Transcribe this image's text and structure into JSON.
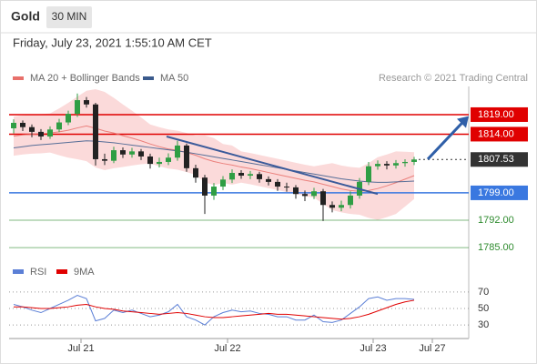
{
  "chart_data": {
    "type": "candlestick",
    "symbol": "Gold",
    "timeframe": "30 MIN",
    "timestamp": "Friday, July 23, 2021 1:55:10 AM CET",
    "credit": "Research © 2021 Trading Central",
    "xlim": [
      -0.5,
      50
    ],
    "ylim": [
      1782,
      1826.2
    ],
    "xticks": [
      {
        "value": 7.4,
        "label": "Jul 21"
      },
      {
        "value": 23.5,
        "label": "Jul 22"
      },
      {
        "value": 39.5,
        "label": "Jul 23"
      },
      {
        "value": 46,
        "label": "Jul 27"
      }
    ],
    "candles": {
      "up_color": "#2f9e44",
      "down_color": "#222222",
      "open": [
        1815.5,
        1816.9,
        1815.8,
        1814.6,
        1813.4,
        1815.2,
        1817.0,
        1819.2,
        1822.7,
        1821.6,
        1807.6,
        1807.2,
        1809.9,
        1808.8,
        1809.6,
        1808.3,
        1806.4,
        1806.9,
        1808.0,
        1811.1,
        1805.3,
        1802.9,
        1798.3,
        1800.6,
        1802.4,
        1804.1,
        1803.4,
        1803.8,
        1802.5,
        1801.8,
        1800.6,
        1800.4,
        1798.7,
        1798.2,
        1799.4,
        1795.9,
        1795.2,
        1795.9,
        1798.3,
        1801.8,
        1805.8,
        1806.4,
        1806.0,
        1806.6,
        1806.9
      ],
      "high": [
        1817.8,
        1817.5,
        1816.5,
        1815.3,
        1816.0,
        1817.9,
        1820.0,
        1824.4,
        1823.5,
        1822.0,
        1809.0,
        1810.8,
        1810.6,
        1810.5,
        1810.2,
        1809.0,
        1808.0,
        1809.1,
        1812.3,
        1811.6,
        1806.2,
        1803.6,
        1801.5,
        1803.3,
        1805.0,
        1804.8,
        1804.6,
        1804.4,
        1803.2,
        1802.5,
        1801.6,
        1801.0,
        1799.6,
        1800.3,
        1800.0,
        1796.8,
        1797.0,
        1799.4,
        1802.8,
        1806.9,
        1807.3,
        1807.1,
        1807.4,
        1807.6,
        1808.2
      ],
      "low": [
        1814.2,
        1814.8,
        1813.2,
        1812.5,
        1812.8,
        1814.5,
        1816.3,
        1818.4,
        1820.8,
        1806.0,
        1806.1,
        1806.6,
        1807.9,
        1808.0,
        1807.4,
        1805.2,
        1805.5,
        1806.1,
        1807.2,
        1804.4,
        1801.6,
        1793.6,
        1797.2,
        1799.7,
        1801.5,
        1802.6,
        1802.5,
        1801.6,
        1800.9,
        1799.5,
        1799.3,
        1797.5,
        1796.9,
        1797.4,
        1791.8,
        1794.0,
        1794.3,
        1795.0,
        1797.5,
        1801.0,
        1804.9,
        1805.0,
        1805.2,
        1805.7,
        1806.1
      ],
      "close": [
        1816.9,
        1815.8,
        1814.6,
        1813.4,
        1815.2,
        1817.0,
        1819.2,
        1822.7,
        1821.6,
        1807.6,
        1807.2,
        1809.9,
        1808.8,
        1809.6,
        1808.3,
        1806.4,
        1806.9,
        1808.0,
        1811.1,
        1805.3,
        1802.9,
        1798.3,
        1800.6,
        1802.4,
        1804.1,
        1803.4,
        1803.8,
        1802.5,
        1801.8,
        1800.6,
        1800.4,
        1798.7,
        1798.2,
        1799.4,
        1795.9,
        1795.2,
        1795.9,
        1798.3,
        1801.8,
        1805.8,
        1806.4,
        1806.0,
        1806.6,
        1806.9,
        1807.53
      ]
    },
    "series": [
      {
        "name": "MA 20 + Bollinger Bands",
        "color": "#e8706b",
        "band_color": "#fbdada",
        "values": [
          1813.5,
          1813.8,
          1814.0,
          1814.1,
          1814.3,
          1814.6,
          1815.0,
          1815.6,
          1816.1,
          1815.5,
          1814.8,
          1814.3,
          1813.6,
          1813.0,
          1812.3,
          1811.5,
          1810.8,
          1810.2,
          1809.9,
          1809.3,
          1808.6,
          1807.7,
          1807.0,
          1806.5,
          1806.1,
          1805.6,
          1805.2,
          1804.7,
          1804.2,
          1803.7,
          1803.2,
          1802.7,
          1802.2,
          1801.8,
          1801.2,
          1800.6,
          1800.0,
          1799.6,
          1799.4,
          1799.6,
          1800.1,
          1800.8,
          1801.6,
          1802.5,
          1803.4
        ],
        "band_width": [
          5,
          5,
          5,
          5,
          5,
          6,
          7,
          8,
          9,
          10,
          10,
          9,
          8,
          7,
          6,
          5,
          5,
          5,
          5,
          5,
          5,
          6,
          6,
          5,
          5,
          4,
          4,
          4,
          4,
          4,
          4,
          4,
          4,
          4,
          5,
          6,
          6,
          6,
          6,
          7,
          8,
          8,
          8,
          7,
          6
        ]
      },
      {
        "name": "MA 50",
        "color": "#3a5a8c",
        "values": [
          1810.5,
          1810.8,
          1811.1,
          1811.3,
          1811.5,
          1811.7,
          1811.9,
          1812.1,
          1812.3,
          1812.2,
          1812.0,
          1811.8,
          1811.5,
          1811.2,
          1810.9,
          1810.6,
          1810.3,
          1810.0,
          1809.7,
          1809.4,
          1809.0,
          1808.6,
          1808.2,
          1807.8,
          1807.4,
          1807.0,
          1806.6,
          1806.2,
          1805.8,
          1805.4,
          1805.0,
          1804.6,
          1804.2,
          1803.8,
          1803.4,
          1803.0,
          1802.6,
          1802.3,
          1802.0,
          1801.8,
          1801.7,
          1801.7,
          1801.8,
          1801.9,
          1802.0
        ]
      }
    ],
    "levels": [
      {
        "value": 1819,
        "label": "1819.00",
        "color": "#e00000",
        "boxed": true,
        "line": "solid"
      },
      {
        "value": 1814,
        "label": "1814.00",
        "color": "#e00000",
        "boxed": true,
        "line": "solid"
      },
      {
        "value": 1807.53,
        "label": "1807.53",
        "color": "#333333",
        "boxed": true,
        "line": "dotted"
      },
      {
        "value": 1799,
        "label": "1799.00",
        "color": "#3a78e0",
        "boxed": true,
        "line": "solid"
      },
      {
        "value": 1792,
        "label": "1792.00",
        "color": "#2e8b2e",
        "boxed": false,
        "line": "solid"
      },
      {
        "value": 1785,
        "label": "1785.00",
        "color": "#2e8b2e",
        "boxed": false,
        "line": "solid"
      }
    ],
    "trendline": {
      "color": "#3a5a9a",
      "x": [
        16.8,
        40
      ],
      "y": [
        1813.4,
        1798.7
      ]
    },
    "arrow": {
      "color": "#2f5fa8",
      "x": [
        45.5,
        50
      ],
      "y": [
        1807.6,
        1818.6
      ]
    },
    "rsi": {
      "ylim": [
        18,
        82
      ],
      "yticks": [
        70,
        50,
        30
      ],
      "series": [
        {
          "name": "RSI",
          "color": "#5b7fd6",
          "values": [
            55,
            52,
            48,
            45,
            50,
            55,
            60,
            66,
            62,
            35,
            38,
            48,
            45,
            48,
            44,
            40,
            42,
            46,
            55,
            40,
            36,
            30,
            40,
            45,
            48,
            46,
            47,
            44,
            43,
            40,
            40,
            36,
            36,
            42,
            34,
            33,
            36,
            44,
            52,
            62,
            64,
            60,
            62,
            62,
            61
          ]
        },
        {
          "name": "9MA",
          "color": "#e00000",
          "values": [
            52,
            52,
            51,
            50,
            50,
            51,
            52,
            54,
            55,
            52,
            50,
            49,
            47,
            46,
            45,
            44,
            43,
            44,
            45,
            44,
            42,
            40,
            39,
            39,
            40,
            41,
            42,
            43,
            44,
            43,
            43,
            42,
            41,
            40,
            39,
            38,
            37,
            38,
            40,
            43,
            47,
            51,
            55,
            58,
            60
          ]
        }
      ]
    }
  }
}
